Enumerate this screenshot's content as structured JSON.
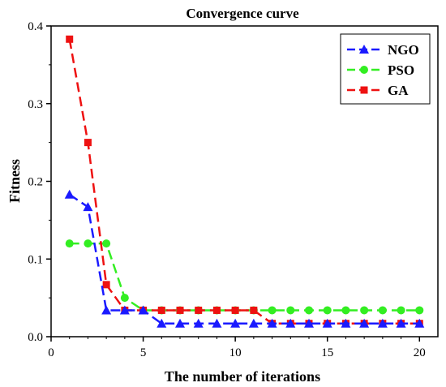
{
  "chart_data": {
    "type": "line",
    "title": "Convergence curve",
    "xlabel": "The number of iterations",
    "ylabel": "Fitness",
    "xlim": [
      0,
      21
    ],
    "ylim": [
      0,
      0.4
    ],
    "xticks": [
      0,
      5,
      10,
      15,
      20
    ],
    "yticks": [
      0.0,
      0.1,
      0.2,
      0.3,
      0.4
    ],
    "xtick_labels": [
      "0",
      "5",
      "10",
      "15",
      "20"
    ],
    "ytick_labels": [
      "0.0",
      "0.1",
      "0.2",
      "0.3",
      "0.4"
    ],
    "grid": false,
    "legend_position": "top-right",
    "x": [
      1,
      2,
      3,
      4,
      5,
      6,
      7,
      8,
      9,
      10,
      11,
      12,
      13,
      14,
      15,
      16,
      17,
      18,
      19,
      20
    ],
    "series": [
      {
        "name": "NGO",
        "color": "#1a1aff",
        "marker": "triangle",
        "line": "dashed",
        "values": [
          0.183,
          0.167,
          0.034,
          0.034,
          0.034,
          0.017,
          0.017,
          0.017,
          0.017,
          0.017,
          0.017,
          0.017,
          0.017,
          0.017,
          0.017,
          0.017,
          0.017,
          0.017,
          0.017,
          0.017
        ]
      },
      {
        "name": "PSO",
        "color": "#33ee22",
        "marker": "circle",
        "line": "dashed",
        "values": [
          0.12,
          0.12,
          0.12,
          0.05,
          0.034,
          0.034,
          0.034,
          0.034,
          0.034,
          0.034,
          0.034,
          0.034,
          0.034,
          0.034,
          0.034,
          0.034,
          0.034,
          0.034,
          0.034,
          0.034
        ]
      },
      {
        "name": "GA",
        "color": "#ee1111",
        "marker": "square",
        "line": "dashed",
        "values": [
          0.383,
          0.25,
          0.067,
          0.034,
          0.034,
          0.034,
          0.034,
          0.034,
          0.034,
          0.034,
          0.034,
          0.017,
          0.017,
          0.017,
          0.017,
          0.017,
          0.017,
          0.017,
          0.017,
          0.017
        ]
      }
    ]
  }
}
